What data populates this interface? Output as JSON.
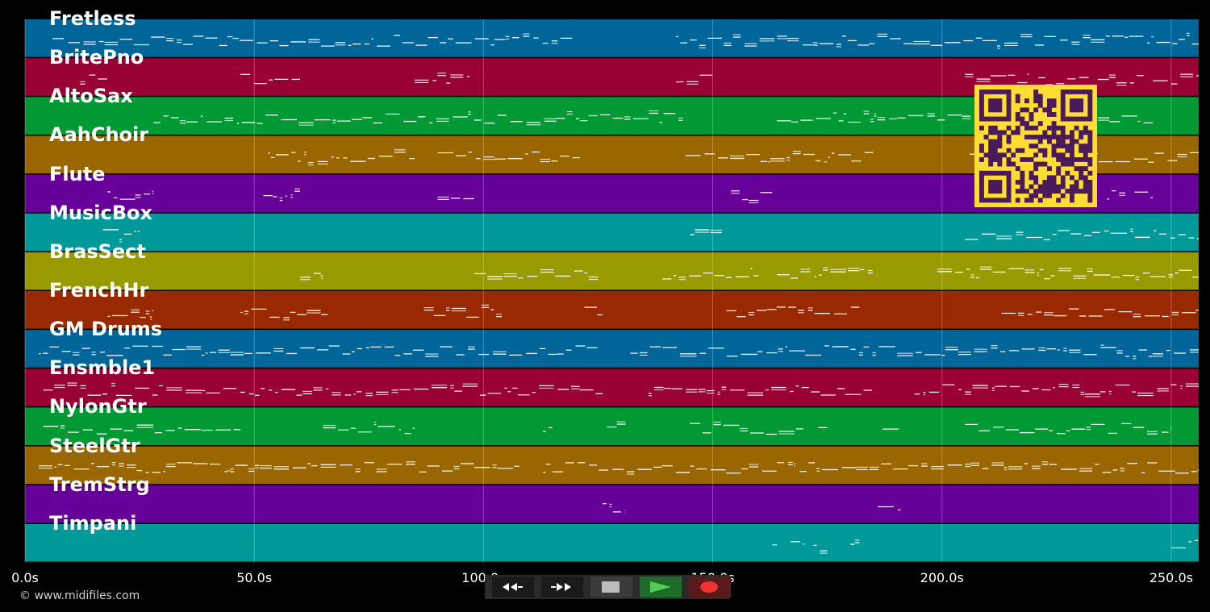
{
  "chart_data": {
    "type": "piano-roll",
    "xlim": [
      0,
      256
    ],
    "x_ticks": [
      {
        "value": 0,
        "label": "0.0s"
      },
      {
        "value": 50,
        "label": "50.0s"
      },
      {
        "value": 100,
        "label": "100.0s"
      },
      {
        "value": 150,
        "label": "150.0s"
      },
      {
        "value": 200,
        "label": "200.0s"
      },
      {
        "value": 250,
        "label": "250.0s"
      }
    ],
    "grid": true,
    "tracks": [
      {
        "name": "Fretless",
        "color": "#006699",
        "notes": [
          [
            6,
            120
          ],
          [
            142,
            256
          ]
        ]
      },
      {
        "name": "BritePno",
        "color": "#990033",
        "notes": [
          [
            12,
            18
          ],
          [
            47,
            60
          ],
          [
            85,
            97
          ],
          [
            142,
            150
          ],
          [
            205,
            219
          ],
          [
            221,
            232
          ],
          [
            234,
            244
          ],
          [
            246,
            252
          ],
          [
            252,
            256
          ]
        ]
      },
      {
        "name": "AltoSax",
        "color": "#009933",
        "notes": [
          [
            28,
            144
          ],
          [
            164,
            210
          ],
          [
            234,
            246
          ]
        ]
      },
      {
        "name": "AahChoir",
        "color": "#996600",
        "notes": [
          [
            53,
            85
          ],
          [
            90,
            121
          ],
          [
            144,
            185
          ],
          [
            206,
            256
          ]
        ]
      },
      {
        "name": "Flute",
        "color": "#660099",
        "notes": [
          [
            18,
            28
          ],
          [
            52,
            60
          ],
          [
            90,
            98
          ],
          [
            154,
            163
          ],
          [
            236,
            240
          ],
          [
            242,
            246
          ]
        ]
      },
      {
        "name": "MusicBox",
        "color": "#009999",
        "notes": [
          [
            17,
            25
          ],
          [
            145,
            152
          ],
          [
            205,
            256
          ]
        ]
      },
      {
        "name": "BrasSect",
        "color": "#999900",
        "notes": [
          [
            60,
            65
          ],
          [
            98,
            125
          ],
          [
            139,
            160
          ],
          [
            164,
            185
          ],
          [
            199,
            256
          ]
        ]
      },
      {
        "name": "FrenchHr",
        "color": "#992900",
        "notes": [
          [
            18,
            28
          ],
          [
            47,
            66
          ],
          [
            87,
            104
          ],
          [
            122,
            126
          ],
          [
            153,
            182
          ],
          [
            213,
            256
          ]
        ]
      },
      {
        "name": "GM Drums",
        "color": "#006699",
        "notes": [
          [
            3,
            125
          ],
          [
            132,
            256
          ]
        ]
      },
      {
        "name": "Ensmble1",
        "color": "#990033",
        "notes": [
          [
            4,
            126
          ],
          [
            136,
            185
          ],
          [
            194,
            256
          ]
        ]
      },
      {
        "name": "NylonGtr",
        "color": "#009933",
        "notes": [
          [
            4,
            47
          ],
          [
            65,
            85
          ],
          [
            113,
            115
          ],
          [
            127,
            131
          ],
          [
            145,
            170
          ],
          [
            173,
            175
          ],
          [
            187,
            191
          ],
          [
            205,
            250
          ]
        ]
      },
      {
        "name": "SteelGtr",
        "color": "#996600",
        "notes": [
          [
            3,
            108
          ],
          [
            113,
            168
          ],
          [
            169,
            256
          ]
        ]
      },
      {
        "name": "TremStrg",
        "color": "#660099",
        "notes": [
          [
            126,
            131
          ],
          [
            186,
            191
          ]
        ]
      },
      {
        "name": "Timpani",
        "color": "#009999",
        "notes": [
          [
            163,
            164
          ],
          [
            167,
            170
          ],
          [
            172,
            175
          ],
          [
            180,
            182
          ],
          [
            250,
            256
          ]
        ]
      }
    ]
  },
  "footer": {
    "copyright": "© www.midifiles.com"
  },
  "transport": {
    "buttons": [
      {
        "id": "rewind",
        "icon": "rewind-icon",
        "bg": "#1a1a1a"
      },
      {
        "id": "fast-forward",
        "icon": "fast-forward-icon",
        "bg": "#1a1a1a"
      },
      {
        "id": "stop",
        "icon": "stop-icon",
        "bg": "#3a3a3a"
      },
      {
        "id": "play",
        "icon": "play-icon",
        "bg": "#1f6b2a"
      },
      {
        "id": "record",
        "icon": "record-icon",
        "bg": "#5a1a1a"
      }
    ]
  },
  "qr": {
    "icon": "qr-code-icon",
    "foreground": "#4a1a5a",
    "background": "#ffdd33"
  }
}
